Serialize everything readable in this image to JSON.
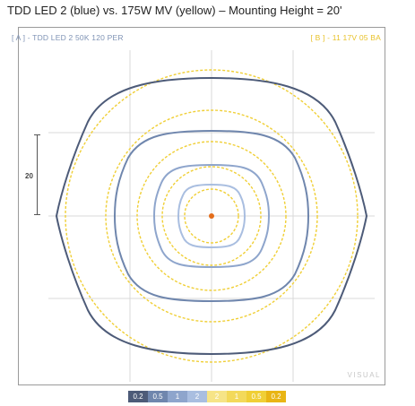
{
  "title": "TDD LED 2 (blue) vs. 175W MV (yellow) – Mounting Height = 20'",
  "header": {
    "series_a": "[ A ] - TDD LED 2 50K 120 PER",
    "series_b": "[ B ] - 11 17V 05 BA"
  },
  "scale": {
    "label": "20"
  },
  "watermark": "VISUAL",
  "colors": {
    "blue_dark": "#4d5b78",
    "blue_mid": "#6f86ad",
    "blue_light": "#9fb6d8",
    "yellow_light": "#f6e487",
    "yellow_mid": "#f0cf36",
    "yellow_dark": "#e9b514"
  },
  "legend": [
    {
      "label": "0.2",
      "color": "#4d5b78"
    },
    {
      "label": "0.5",
      "color": "#6f86ad"
    },
    {
      "label": "1",
      "color": "#8ea5cc"
    },
    {
      "label": "2",
      "color": "#a9bee0"
    },
    {
      "label": "2",
      "color": "#f6e487"
    },
    {
      "label": "1",
      "color": "#f3d95a"
    },
    {
      "label": "0.5",
      "color": "#f0cf36"
    },
    {
      "label": "0.2",
      "color": "#e9b514"
    }
  ]
}
